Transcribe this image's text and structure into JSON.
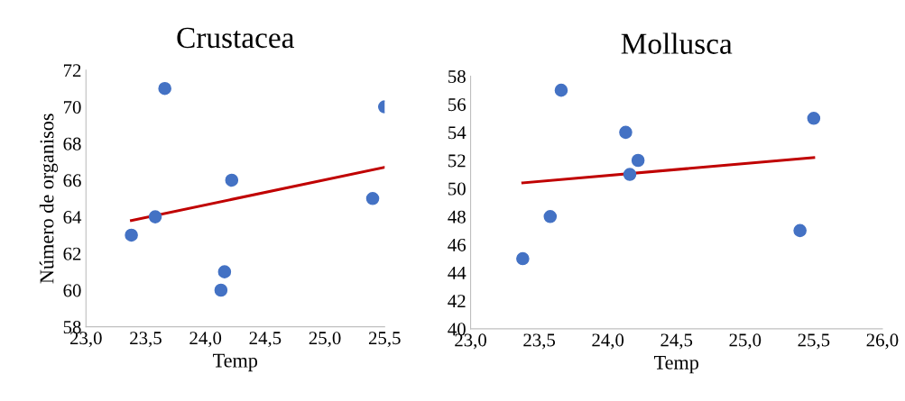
{
  "chart_data": [
    {
      "type": "scatter",
      "title": "Crustacea",
      "xlabel": "Temp",
      "ylabel": "Número de organisos",
      "grid": false,
      "legend": false,
      "xlim": [
        23.0,
        25.5
      ],
      "xticks": [
        {
          "value": 23.0,
          "label": "23,0"
        },
        {
          "value": 23.5,
          "label": "23,5"
        },
        {
          "value": 24.0,
          "label": "24,0"
        },
        {
          "value": 24.5,
          "label": "24,5"
        },
        {
          "value": 25.0,
          "label": "25,0"
        },
        {
          "value": 25.5,
          "label": "25,5"
        }
      ],
      "ylim": [
        58,
        72
      ],
      "yticks": [
        58,
        60,
        62,
        64,
        66,
        68,
        70,
        72
      ],
      "series": [
        {
          "marker": "circle",
          "color": "#4472c4",
          "x": [
            23.38,
            23.58,
            23.66,
            24.22,
            24.16,
            24.13,
            25.4,
            25.5
          ],
          "values": [
            63,
            64,
            71,
            66,
            61,
            60,
            65,
            70
          ]
        },
        {
          "type": "line",
          "marker": "none",
          "color": "#c00000",
          "x": [
            23.38,
            25.5
          ],
          "values": [
            63.8,
            66.7
          ]
        }
      ]
    },
    {
      "type": "scatter",
      "title": "Mollusca",
      "xlabel": "Temp",
      "grid": false,
      "legend": false,
      "xlim": [
        23.0,
        26.0
      ],
      "xticks": [
        {
          "value": 23.0,
          "label": "23,0"
        },
        {
          "value": 23.5,
          "label": "23,5"
        },
        {
          "value": 24.0,
          "label": "24,0"
        },
        {
          "value": 24.5,
          "label": "24,5"
        },
        {
          "value": 25.0,
          "label": "25,0"
        },
        {
          "value": 25.5,
          "label": "25,5"
        },
        {
          "value": 26.0,
          "label": "26,0"
        }
      ],
      "ylim": [
        40,
        58
      ],
      "yticks": [
        40,
        42,
        44,
        46,
        48,
        50,
        52,
        54,
        56,
        58
      ],
      "series": [
        {
          "marker": "circle",
          "color": "#4472c4",
          "x": [
            23.38,
            23.58,
            23.66,
            24.13,
            24.22,
            24.16,
            25.4,
            25.5
          ],
          "values": [
            45,
            48,
            57,
            54,
            52,
            51,
            47,
            55
          ]
        },
        {
          "type": "line",
          "marker": "none",
          "color": "#c00000",
          "x": [
            23.38,
            25.5
          ],
          "values": [
            50.4,
            52.2
          ]
        }
      ]
    }
  ]
}
